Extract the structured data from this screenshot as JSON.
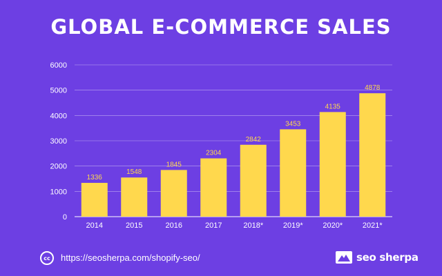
{
  "title": "GLOBAL E-COMMERCE SALES",
  "footer": {
    "cc_label": "cc",
    "url": "https://seosherpa.com/shopify-seo/",
    "brand": "seo sherpa",
    "brand_icon": "mountain-logo-icon",
    "cc_icon": "creative-commons-icon"
  },
  "colors": {
    "background": "#6d3fe3",
    "bar": "#ffd84d",
    "value_label": "#ffd84d",
    "axis_text": "#ffffff",
    "grid": "#ffffff"
  },
  "chart_data": {
    "type": "bar",
    "title": "GLOBAL E-COMMERCE SALES",
    "categories": [
      "2014",
      "2015",
      "2016",
      "2017",
      "2018*",
      "2019*",
      "2020*",
      "2021*"
    ],
    "values": [
      1336,
      1548,
      1845,
      2304,
      2842,
      3453,
      4135,
      4878
    ],
    "value_labels": [
      "1336",
      "1548",
      "1845",
      "2304",
      "2842",
      "3453",
      "4135",
      "4878"
    ],
    "yticks": [
      0,
      1000,
      2000,
      3000,
      4000,
      5000,
      6000
    ],
    "ytick_labels": [
      "0",
      "1000",
      "2000",
      "3000",
      "4000",
      "5000",
      "6000"
    ],
    "ylim": [
      0,
      6000
    ],
    "xlabel": "",
    "ylabel": "",
    "grid": true
  }
}
